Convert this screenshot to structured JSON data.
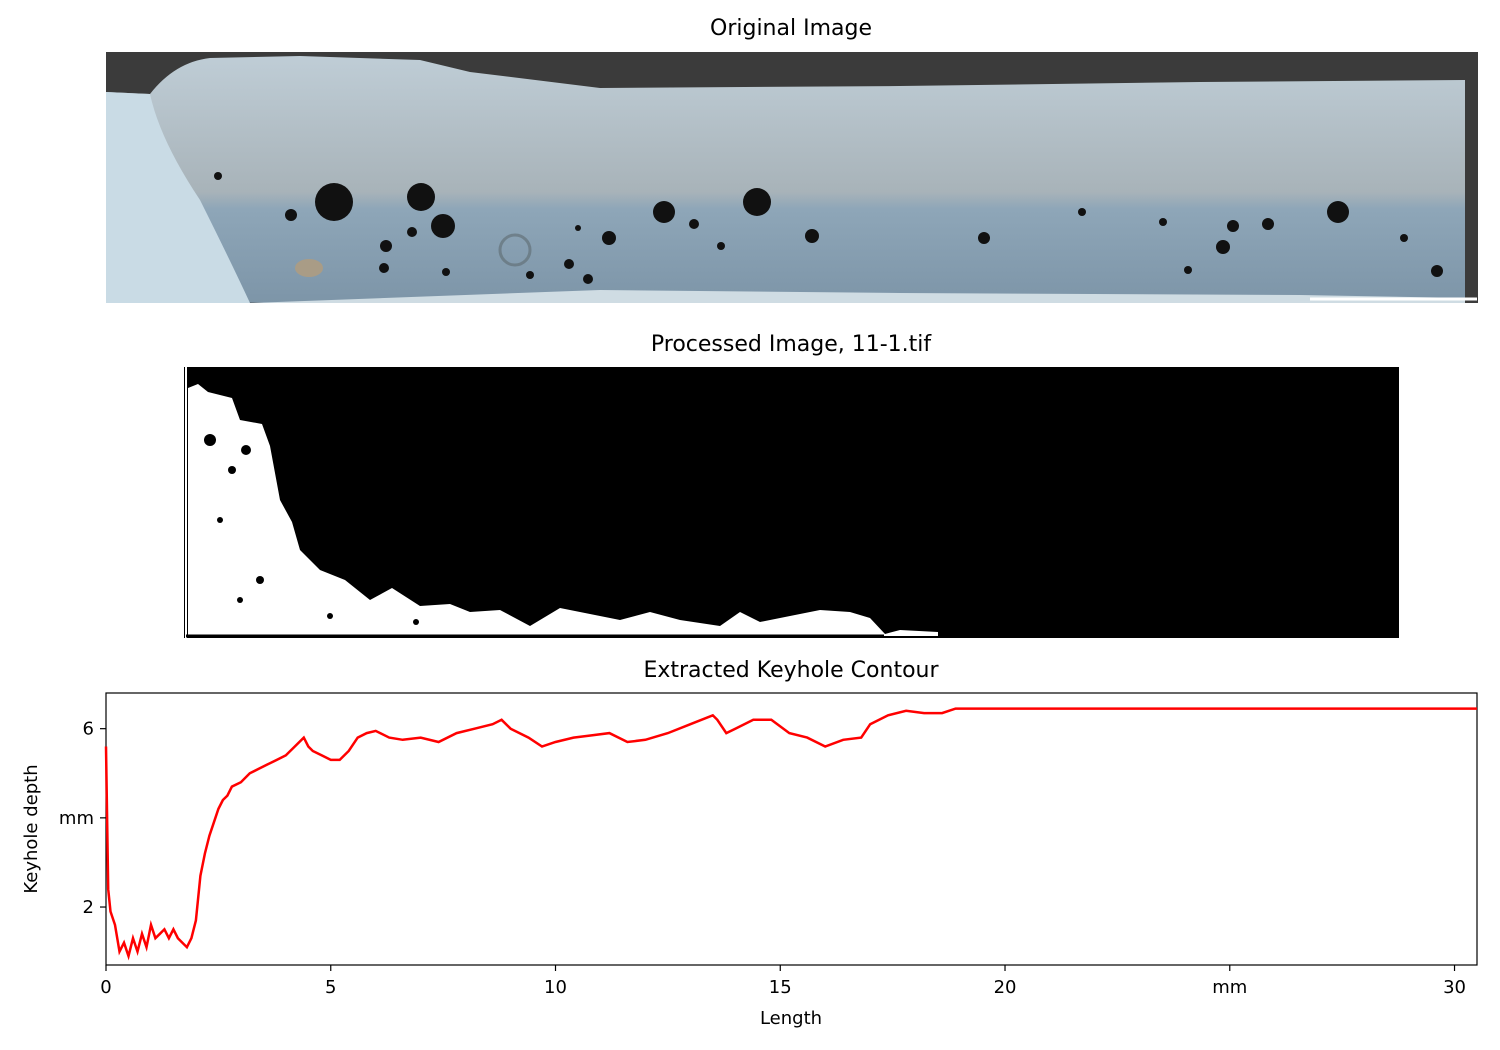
{
  "panels": {
    "original": {
      "title": "Original Image"
    },
    "processed": {
      "title": "Processed Image, 11-1.tif"
    },
    "contour": {
      "title": "Extracted Keyhole Contour"
    }
  },
  "colors": {
    "line": "#ff0000",
    "steel_light": "#c9d7df",
    "steel_mid": "#9fb3c2",
    "steel_dark": "#6f8597",
    "mount_dark": "#3b3b3b",
    "processed_bg": "#000000",
    "processed_fg": "#ffffff"
  },
  "chart_data": {
    "type": "line",
    "title": "Extracted Keyhole Contour",
    "xlabel": "Length",
    "ylabel": "Keyhole depth",
    "xlim": [
      0,
      30.5
    ],
    "ylim": [
      0.7,
      6.8
    ],
    "x_ticks": [
      {
        "value": 0,
        "label": "0"
      },
      {
        "value": 5,
        "label": "5"
      },
      {
        "value": 10,
        "label": "10"
      },
      {
        "value": 15,
        "label": "15"
      },
      {
        "value": 20,
        "label": "20"
      },
      {
        "value": 25,
        "label": "mm"
      },
      {
        "value": 30,
        "label": "30"
      }
    ],
    "y_ticks": [
      {
        "value": 2,
        "label": "2"
      },
      {
        "value": 4,
        "label": "mm"
      },
      {
        "value": 6,
        "label": "6"
      }
    ],
    "series": [
      {
        "color": "#ff0000",
        "x": [
          0,
          0.05,
          0.1,
          0.2,
          0.3,
          0.4,
          0.5,
          0.6,
          0.7,
          0.8,
          0.9,
          1.0,
          1.1,
          1.2,
          1.3,
          1.4,
          1.5,
          1.6,
          1.7,
          1.8,
          1.9,
          2.0,
          2.1,
          2.2,
          2.3,
          2.4,
          2.5,
          2.6,
          2.7,
          2.8,
          3.0,
          3.2,
          3.4,
          3.6,
          3.8,
          4.0,
          4.2,
          4.4,
          4.5,
          4.6,
          4.8,
          5.0,
          5.2,
          5.4,
          5.6,
          5.8,
          6.0,
          6.3,
          6.6,
          7.0,
          7.4,
          7.8,
          8.2,
          8.6,
          8.8,
          9.0,
          9.4,
          9.7,
          10.0,
          10.4,
          10.8,
          11.2,
          11.6,
          12.0,
          12.5,
          13.0,
          13.5,
          13.6,
          13.8,
          14.0,
          14.4,
          14.8,
          15.2,
          15.6,
          16.0,
          16.4,
          16.8,
          17.0,
          17.4,
          17.8,
          18.2,
          18.6,
          18.9,
          19.5,
          25.0,
          30.5
        ],
        "y": [
          5.6,
          2.4,
          1.9,
          1.6,
          1.0,
          1.2,
          0.9,
          1.3,
          1.0,
          1.4,
          1.1,
          1.6,
          1.3,
          1.4,
          1.5,
          1.3,
          1.5,
          1.3,
          1.2,
          1.1,
          1.3,
          1.7,
          2.7,
          3.2,
          3.6,
          3.9,
          4.2,
          4.4,
          4.5,
          4.7,
          4.8,
          5.0,
          5.1,
          5.2,
          5.3,
          5.4,
          5.6,
          5.8,
          5.6,
          5.5,
          5.4,
          5.3,
          5.3,
          5.5,
          5.8,
          5.9,
          5.95,
          5.8,
          5.75,
          5.8,
          5.7,
          5.9,
          6.0,
          6.1,
          6.2,
          6.0,
          5.8,
          5.6,
          5.7,
          5.8,
          5.85,
          5.9,
          5.7,
          5.75,
          5.9,
          6.1,
          6.3,
          6.2,
          5.9,
          6.0,
          6.2,
          6.2,
          5.9,
          5.8,
          5.6,
          5.75,
          5.8,
          6.1,
          6.3,
          6.4,
          6.35,
          6.35,
          6.45,
          6.45,
          6.45,
          6.45
        ]
      }
    ]
  }
}
